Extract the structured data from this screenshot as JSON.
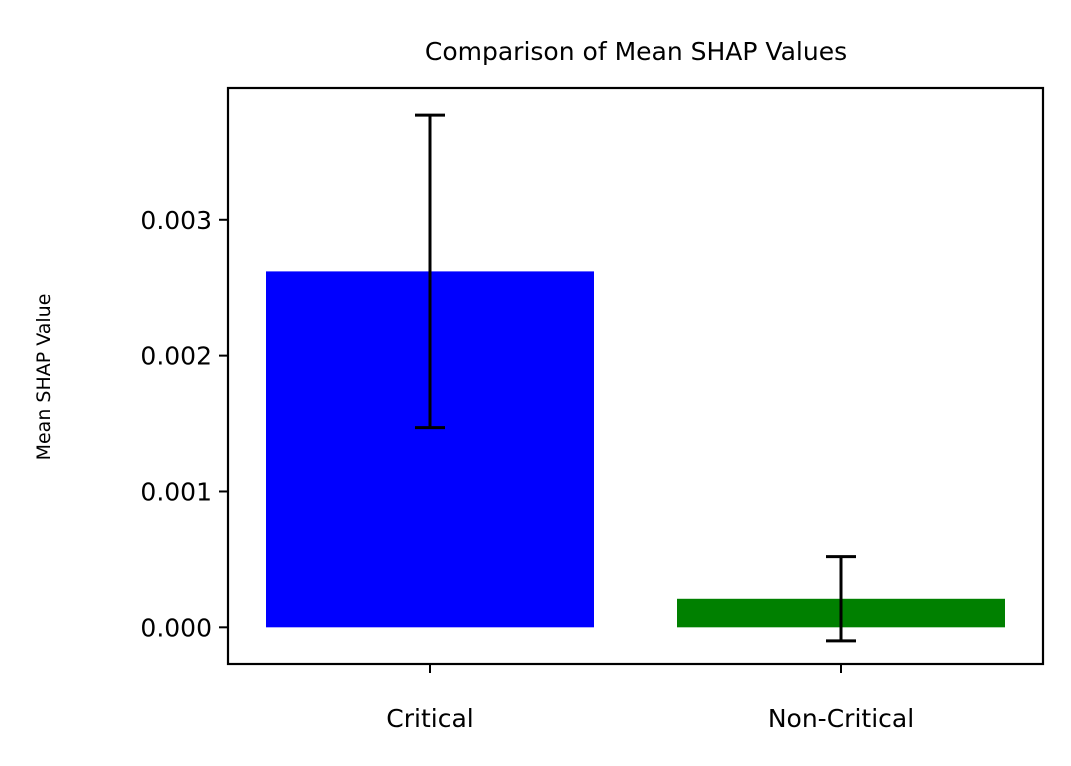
{
  "chart_data": {
    "type": "bar",
    "title": "Comparison of Mean SHAP Values",
    "xlabel": "",
    "ylabel": "Mean SHAP Value",
    "categories": [
      "Critical",
      "Non-Critical"
    ],
    "values": [
      0.00262,
      0.00021
    ],
    "error": [
      0.00115,
      0.00031
    ],
    "colors": [
      "#0000ff",
      "#008000"
    ],
    "errorbar_color": "#000000",
    "ylim": [
      -0.00027,
      0.00397
    ],
    "yticks": [
      0.0,
      0.001,
      0.002,
      0.003
    ],
    "ytick_labels": [
      "0.000",
      "0.001",
      "0.002",
      "0.003"
    ],
    "grid": false,
    "legend": false
  }
}
